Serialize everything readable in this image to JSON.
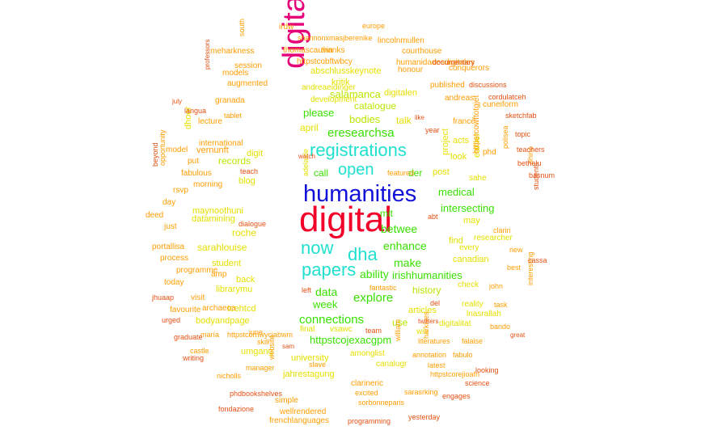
{
  "colors": {
    "red": "#f2002a",
    "magenta": "#e5007a",
    "blue": "#1010d8",
    "cyan": "#21e0d0",
    "green": "#38e000",
    "yellowgreen": "#b8e600",
    "yellow": "#e6e000",
    "orange": "#ff9d00",
    "darkorange": "#e8740a",
    "redorange": "#e55013"
  },
  "words": [
    {
      "text": "digital",
      "color": "red"
    },
    {
      "text": "digitalhumanities",
      "color": "magenta",
      "vertical": true
    },
    {
      "text": "humanities",
      "color": "blue"
    },
    {
      "text": "registrations",
      "color": "cyan"
    },
    {
      "text": "open",
      "color": "cyan"
    },
    {
      "text": "now",
      "color": "cyan"
    },
    {
      "text": "dha",
      "color": "cyan"
    },
    {
      "text": "papers",
      "color": "cyan"
    },
    {
      "text": "eresearchsa",
      "color": "green"
    },
    {
      "text": "please",
      "color": "green"
    },
    {
      "text": "call",
      "color": "green"
    },
    {
      "text": "der",
      "color": "green"
    },
    {
      "text": "enhance",
      "color": "green"
    },
    {
      "text": "make",
      "color": "green"
    },
    {
      "text": "ability",
      "color": "green"
    },
    {
      "text": "data",
      "color": "green"
    },
    {
      "text": "explore",
      "color": "green"
    },
    {
      "text": "connections",
      "color": "green"
    },
    {
      "text": "betwee",
      "color": "green"
    },
    {
      "text": "irishhumanities",
      "color": "green"
    },
    {
      "text": "medical",
      "color": "green"
    },
    {
      "text": "intersecting",
      "color": "green"
    },
    {
      "text": "mit",
      "color": "green"
    },
    {
      "text": "week",
      "color": "green"
    },
    {
      "text": "httpstcojexacgpm",
      "color": "green"
    },
    {
      "text": "bodies",
      "color": "yellowgreen"
    },
    {
      "text": "salamanca",
      "color": "yellowgreen"
    },
    {
      "text": "catalogue",
      "color": "yellowgreen"
    },
    {
      "text": "records",
      "color": "yellowgreen"
    },
    {
      "text": "history",
      "color": "yellowgreen"
    },
    {
      "text": "use",
      "color": "yellowgreen"
    },
    {
      "text": "april",
      "color": "yellow"
    },
    {
      "text": "talk",
      "color": "yellow"
    },
    {
      "text": "post",
      "color": "yellow"
    },
    {
      "text": "roche",
      "color": "yellow"
    },
    {
      "text": "blog",
      "color": "yellow"
    },
    {
      "text": "datamining",
      "color": "yellow"
    },
    {
      "text": "maynoothuni",
      "color": "yellow"
    },
    {
      "text": "sarahlouise",
      "color": "yellow"
    },
    {
      "text": "student",
      "color": "yellow"
    },
    {
      "text": "back",
      "color": "yellow"
    },
    {
      "text": "librarymu",
      "color": "yellow"
    },
    {
      "text": "tcehtcd",
      "color": "yellow"
    },
    {
      "text": "bodyandpage",
      "color": "yellow"
    },
    {
      "text": "umgang",
      "color": "yellow"
    },
    {
      "text": "university",
      "color": "yellow"
    },
    {
      "text": "jahrestagung",
      "color": "yellow"
    },
    {
      "text": "canadian",
      "color": "yellow"
    },
    {
      "text": "may",
      "color": "yellow"
    },
    {
      "text": "find",
      "color": "yellow"
    },
    {
      "text": "every",
      "color": "yellow"
    },
    {
      "text": "researcher",
      "color": "yellow"
    },
    {
      "text": "check",
      "color": "yellow"
    },
    {
      "text": "articles",
      "color": "yellow"
    },
    {
      "text": "digitalitat",
      "color": "yellow"
    },
    {
      "text": "amonglist",
      "color": "yellow"
    },
    {
      "text": "canalugr",
      "color": "yellow"
    },
    {
      "text": "vsawc",
      "color": "yellow"
    },
    {
      "text": "final",
      "color": "yellow"
    },
    {
      "text": "wie",
      "color": "yellow"
    },
    {
      "text": "reality",
      "color": "yellow"
    },
    {
      "text": "lnasrallah",
      "color": "yellow"
    },
    {
      "text": "look",
      "color": "yellow"
    },
    {
      "text": "acts",
      "color": "yellow"
    },
    {
      "text": "sahe",
      "color": "yellow"
    },
    {
      "text": "digitalen",
      "color": "yellow"
    },
    {
      "text": "development",
      "color": "yellow"
    },
    {
      "text": "kritik",
      "color": "yellow"
    },
    {
      "text": "abschlusskeynote",
      "color": "yellow"
    },
    {
      "text": "andreaeidinger",
      "color": "yellow"
    },
    {
      "text": "digit",
      "color": "yellow"
    },
    {
      "text": "project",
      "color": "yellow",
      "vertical": true
    },
    {
      "text": "earlier",
      "color": "yellow",
      "vertical": true
    },
    {
      "text": "adelaide",
      "color": "yellow",
      "vertical": true
    },
    {
      "text": "dhoer",
      "color": "yellow",
      "vertical": true
    },
    {
      "text": "international",
      "color": "orange"
    },
    {
      "text": "vernunft",
      "color": "orange"
    },
    {
      "text": "fabulous",
      "color": "orange"
    },
    {
      "text": "morning",
      "color": "orange"
    },
    {
      "text": "granada",
      "color": "orange"
    },
    {
      "text": "augmented",
      "color": "orange"
    },
    {
      "text": "models",
      "color": "orange"
    },
    {
      "text": "session",
      "color": "orange"
    },
    {
      "text": "meharkness",
      "color": "orange"
    },
    {
      "text": "thomascauvin",
      "color": "orange"
    },
    {
      "text": "thanks",
      "color": "orange"
    },
    {
      "text": "httpstcobftwbcy",
      "color": "orange"
    },
    {
      "text": "lincolnmullen",
      "color": "orange"
    },
    {
      "text": "courthouse",
      "color": "orange"
    },
    {
      "text": "humanidadesdigitales",
      "color": "orange"
    },
    {
      "text": "honour",
      "color": "orange"
    },
    {
      "text": "conquerors",
      "color": "orange"
    },
    {
      "text": "published",
      "color": "orange"
    },
    {
      "text": "andreas",
      "color": "orange"
    },
    {
      "text": "france",
      "color": "orange"
    },
    {
      "text": "cuneiform",
      "color": "orange"
    },
    {
      "text": "phd",
      "color": "orange"
    },
    {
      "text": "just",
      "color": "orange"
    },
    {
      "text": "programme",
      "color": "orange"
    },
    {
      "text": "today",
      "color": "orange"
    },
    {
      "text": "process",
      "color": "orange"
    },
    {
      "text": "portallisa",
      "color": "orange"
    },
    {
      "text": "archaeoa",
      "color": "orange"
    },
    {
      "text": "visit",
      "color": "orange"
    },
    {
      "text": "amp",
      "color": "orange"
    },
    {
      "text": "rsvp",
      "color": "orange"
    },
    {
      "text": "put",
      "color": "orange"
    },
    {
      "text": "model",
      "color": "orange"
    },
    {
      "text": "lecture",
      "color": "orange"
    },
    {
      "text": "tablet",
      "color": "orange"
    },
    {
      "text": "day",
      "color": "orange"
    },
    {
      "text": "deed",
      "color": "orange"
    },
    {
      "text": "favourite",
      "color": "orange"
    },
    {
      "text": "maría",
      "color": "orange"
    },
    {
      "text": "june",
      "color": "orange"
    },
    {
      "text": "skill",
      "color": "orange"
    },
    {
      "text": "castle",
      "color": "orange"
    },
    {
      "text": "nicholls",
      "color": "orange"
    },
    {
      "text": "manager",
      "color": "orange"
    },
    {
      "text": "slave",
      "color": "orange"
    },
    {
      "text": "clarineric",
      "color": "orange"
    },
    {
      "text": "excited",
      "color": "orange"
    },
    {
      "text": "sarasrking",
      "color": "orange"
    },
    {
      "text": "simple",
      "color": "orange"
    },
    {
      "text": "wellrendered",
      "color": "orange"
    },
    {
      "text": "frenchlanguages",
      "color": "orange"
    },
    {
      "text": "sorbonneparis",
      "color": "orange"
    },
    {
      "text": "httpstcorejioafn",
      "color": "orange"
    },
    {
      "text": "latest",
      "color": "orange"
    },
    {
      "text": "annotation",
      "color": "orange"
    },
    {
      "text": "fabulo",
      "color": "orange"
    },
    {
      "text": "literatures",
      "color": "orange"
    },
    {
      "text": "falaise",
      "color": "orange"
    },
    {
      "text": "bando",
      "color": "orange"
    },
    {
      "text": "task",
      "color": "orange"
    },
    {
      "text": "john",
      "color": "orange"
    },
    {
      "text": "best",
      "color": "orange"
    },
    {
      "text": "new",
      "color": "orange"
    },
    {
      "text": "clarin",
      "color": "orange"
    },
    {
      "text": "fantastic",
      "color": "orange"
    },
    {
      "text": "featured",
      "color": "orange"
    },
    {
      "text": "irdw",
      "color": "orange"
    },
    {
      "text": "shannonxmas",
      "color": "orange"
    },
    {
      "text": "jberenike",
      "color": "orange"
    },
    {
      "text": "europe",
      "color": "orange"
    },
    {
      "text": "httpstcornwyciabwm",
      "color": "orange"
    },
    {
      "text": "website",
      "color": "orange",
      "vertical": true
    },
    {
      "text": "william",
      "color": "orange",
      "vertical": true
    },
    {
      "text": "harkives",
      "color": "orange",
      "vertical": true
    },
    {
      "text": "polisea",
      "color": "orange",
      "vertical": true
    },
    {
      "text": "httpstcowftotgjet",
      "color": "orange",
      "vertical": true
    },
    {
      "text": "ohino",
      "color": "orange",
      "vertical": true
    },
    {
      "text": "interesting",
      "color": "orange",
      "vertical": true
    },
    {
      "text": "opportunity",
      "color": "orange",
      "vertical": true
    },
    {
      "text": "south",
      "color": "orange",
      "vertical": true
    },
    {
      "text": "documentary",
      "color": "redorange"
    },
    {
      "text": "discussions",
      "color": "redorange"
    },
    {
      "text": "cordulatceh",
      "color": "redorange"
    },
    {
      "text": "sketchfab",
      "color": "redorange"
    },
    {
      "text": "topic",
      "color": "redorange"
    },
    {
      "text": "teachers",
      "color": "redorange"
    },
    {
      "text": "bethelu",
      "color": "redorange"
    },
    {
      "text": "basnum",
      "color": "redorange"
    },
    {
      "text": "cassa",
      "color": "redorange"
    },
    {
      "text": "great",
      "color": "redorange"
    },
    {
      "text": "looking",
      "color": "redorange"
    },
    {
      "text": "science",
      "color": "redorange"
    },
    {
      "text": "engages",
      "color": "redorange"
    },
    {
      "text": "yesterday",
      "color": "redorange"
    },
    {
      "text": "programming",
      "color": "redorange"
    },
    {
      "text": "fondazione",
      "color": "redorange"
    },
    {
      "text": "phdbookshelves",
      "color": "redorange"
    },
    {
      "text": "graduate",
      "color": "redorange"
    },
    {
      "text": "writing",
      "color": "redorange"
    },
    {
      "text": "urged",
      "color": "redorange"
    },
    {
      "text": "jhuaap",
      "color": "redorange"
    },
    {
      "text": "langua",
      "color": "redorange"
    },
    {
      "text": "dialogue",
      "color": "redorange"
    },
    {
      "text": "teach",
      "color": "redorange"
    },
    {
      "text": "watch",
      "color": "redorange"
    },
    {
      "text": "like",
      "color": "redorange"
    },
    {
      "text": "year",
      "color": "redorange"
    },
    {
      "text": "abt",
      "color": "redorange"
    },
    {
      "text": "left",
      "color": "redorange"
    },
    {
      "text": "del",
      "color": "redorange"
    },
    {
      "text": "twitters",
      "color": "redorange"
    },
    {
      "text": "team",
      "color": "redorange"
    },
    {
      "text": "sam",
      "color": "redorange"
    },
    {
      "text": "july",
      "color": "redorange"
    },
    {
      "text": "professors",
      "color": "redorange",
      "vertical": true
    },
    {
      "text": "beyond",
      "color": "redorange",
      "vertical": true
    },
    {
      "text": "students",
      "color": "redorange",
      "vertical": true
    },
    {
      "text": "share",
      "color": "redorange",
      "vertical": true
    }
  ]
}
